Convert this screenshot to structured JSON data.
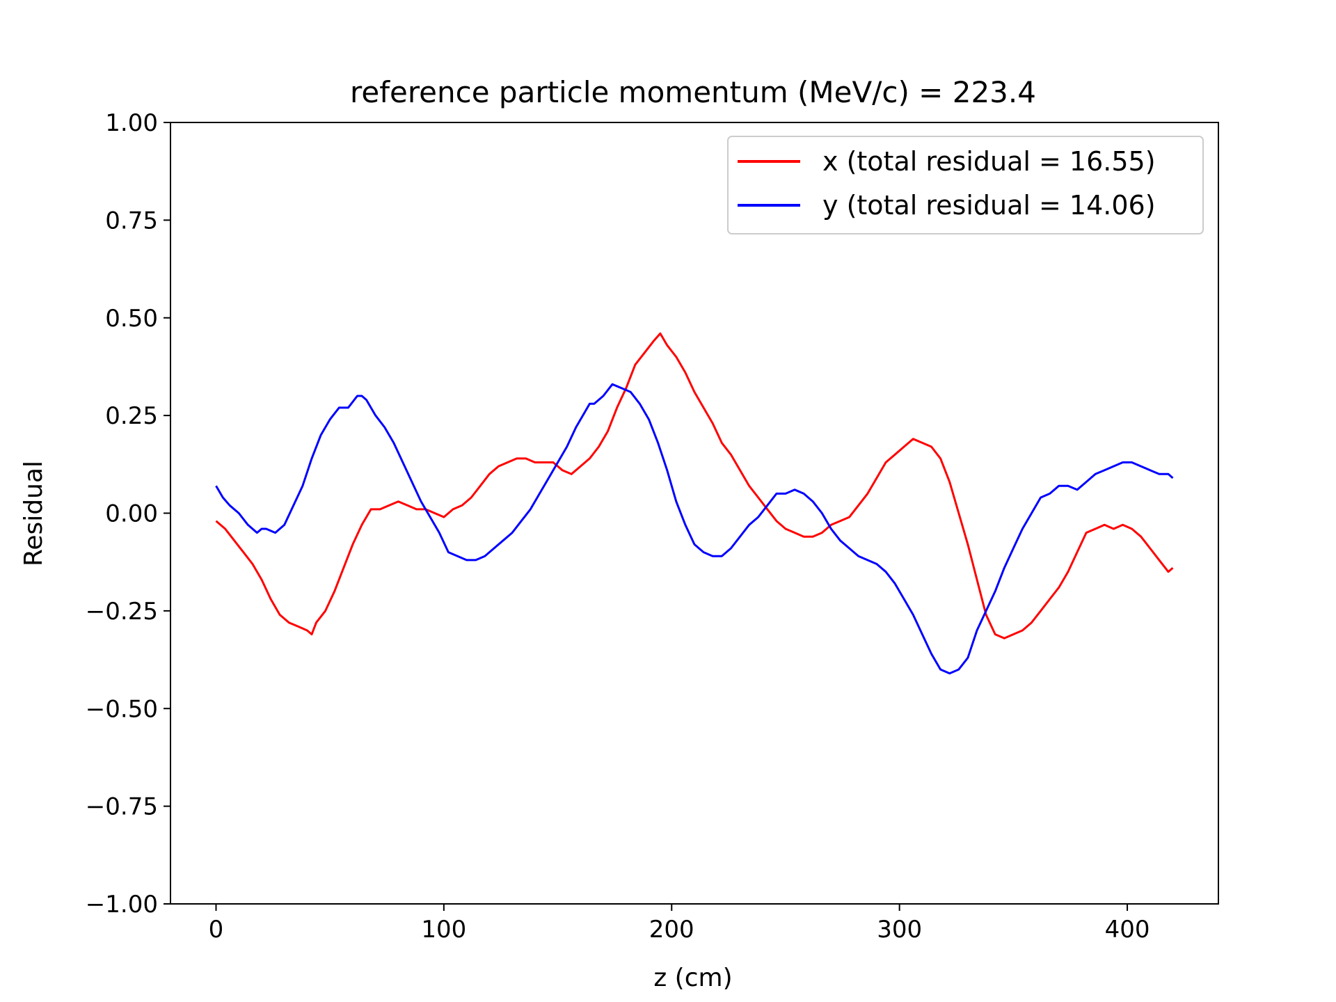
{
  "chart_data": {
    "type": "line",
    "title": "reference particle momentum (MeV/c) = 223.4",
    "xlabel": "z (cm)",
    "ylabel": "Residual",
    "xlim": [
      -20,
      440
    ],
    "ylim": [
      -1.0,
      1.0
    ],
    "xticks": [
      0,
      100,
      200,
      300,
      400
    ],
    "xtick_labels": [
      "0",
      "100",
      "200",
      "300",
      "400"
    ],
    "yticks": [
      -1.0,
      -0.75,
      -0.5,
      -0.25,
      0.0,
      0.25,
      0.5,
      0.75,
      1.0
    ],
    "ytick_labels": [
      "−1.00",
      "−0.75",
      "−0.50",
      "−0.25",
      "0.00",
      "0.25",
      "0.50",
      "0.75",
      "1.00"
    ],
    "grid": false,
    "legend_position": "top-right",
    "series": [
      {
        "name": "x (total residual = 16.55)",
        "color": "#ff0000",
        "x": [
          0,
          4,
          8,
          12,
          16,
          20,
          24,
          28,
          32,
          36,
          40,
          42,
          44,
          48,
          52,
          56,
          60,
          64,
          68,
          72,
          76,
          80,
          84,
          88,
          92,
          96,
          100,
          104,
          108,
          112,
          116,
          120,
          124,
          128,
          132,
          136,
          140,
          144,
          148,
          152,
          156,
          160,
          164,
          168,
          172,
          176,
          180,
          184,
          188,
          192,
          195,
          198,
          202,
          206,
          210,
          214,
          218,
          222,
          226,
          230,
          234,
          238,
          242,
          246,
          250,
          254,
          258,
          262,
          266,
          270,
          274,
          278,
          282,
          286,
          290,
          294,
          298,
          302,
          306,
          310,
          314,
          318,
          322,
          326,
          330,
          334,
          338,
          342,
          346,
          350,
          354,
          358,
          362,
          366,
          370,
          374,
          378,
          382,
          386,
          390,
          394,
          398,
          402,
          406,
          410,
          414,
          418,
          420
        ],
        "y": [
          -0.02,
          -0.04,
          -0.07,
          -0.1,
          -0.13,
          -0.17,
          -0.22,
          -0.26,
          -0.28,
          -0.29,
          -0.3,
          -0.31,
          -0.28,
          -0.25,
          -0.2,
          -0.14,
          -0.08,
          -0.03,
          0.01,
          0.01,
          0.02,
          0.03,
          0.02,
          0.01,
          0.01,
          0.0,
          -0.01,
          0.01,
          0.02,
          0.04,
          0.07,
          0.1,
          0.12,
          0.13,
          0.14,
          0.14,
          0.13,
          0.13,
          0.13,
          0.11,
          0.1,
          0.12,
          0.14,
          0.17,
          0.21,
          0.27,
          0.32,
          0.38,
          0.41,
          0.44,
          0.46,
          0.43,
          0.4,
          0.36,
          0.31,
          0.27,
          0.23,
          0.18,
          0.15,
          0.11,
          0.07,
          0.04,
          0.01,
          -0.02,
          -0.04,
          -0.05,
          -0.06,
          -0.06,
          -0.05,
          -0.03,
          -0.02,
          -0.01,
          0.02,
          0.05,
          0.09,
          0.13,
          0.15,
          0.17,
          0.19,
          0.18,
          0.17,
          0.14,
          0.08,
          0.0,
          -0.08,
          -0.17,
          -0.26,
          -0.31,
          -0.32,
          -0.31,
          -0.3,
          -0.28,
          -0.25,
          -0.22,
          -0.19,
          -0.15,
          -0.1,
          -0.05,
          -0.04,
          -0.03,
          -0.04,
          -0.03,
          -0.04,
          -0.06,
          -0.09,
          -0.12,
          -0.15,
          -0.14
        ]
      },
      {
        "name": "y (total residual = 14.06)",
        "color": "#0000ff",
        "x": [
          0,
          3,
          6,
          10,
          14,
          18,
          20,
          22,
          26,
          30,
          34,
          38,
          42,
          46,
          50,
          54,
          58,
          62,
          64,
          66,
          70,
          74,
          78,
          82,
          86,
          90,
          94,
          98,
          102,
          106,
          110,
          114,
          118,
          122,
          126,
          130,
          134,
          138,
          142,
          146,
          150,
          154,
          158,
          162,
          164,
          166,
          170,
          174,
          178,
          182,
          186,
          190,
          194,
          198,
          202,
          206,
          210,
          214,
          218,
          222,
          226,
          230,
          234,
          238,
          242,
          246,
          250,
          254,
          258,
          262,
          266,
          270,
          274,
          278,
          282,
          286,
          290,
          294,
          298,
          302,
          306,
          310,
          314,
          318,
          322,
          326,
          330,
          334,
          338,
          342,
          346,
          350,
          354,
          358,
          362,
          366,
          370,
          374,
          378,
          382,
          386,
          390,
          394,
          398,
          402,
          406,
          410,
          414,
          418,
          420
        ],
        "y": [
          0.07,
          0.04,
          0.02,
          0.0,
          -0.03,
          -0.05,
          -0.04,
          -0.04,
          -0.05,
          -0.03,
          0.02,
          0.07,
          0.14,
          0.2,
          0.24,
          0.27,
          0.27,
          0.3,
          0.3,
          0.29,
          0.25,
          0.22,
          0.18,
          0.13,
          0.08,
          0.03,
          -0.01,
          -0.05,
          -0.1,
          -0.11,
          -0.12,
          -0.12,
          -0.11,
          -0.09,
          -0.07,
          -0.05,
          -0.02,
          0.01,
          0.05,
          0.09,
          0.13,
          0.17,
          0.22,
          0.26,
          0.28,
          0.28,
          0.3,
          0.33,
          0.32,
          0.31,
          0.28,
          0.24,
          0.18,
          0.11,
          0.03,
          -0.03,
          -0.08,
          -0.1,
          -0.11,
          -0.11,
          -0.09,
          -0.06,
          -0.03,
          -0.01,
          0.02,
          0.05,
          0.05,
          0.06,
          0.05,
          0.03,
          0.0,
          -0.04,
          -0.07,
          -0.09,
          -0.11,
          -0.12,
          -0.13,
          -0.15,
          -0.18,
          -0.22,
          -0.26,
          -0.31,
          -0.36,
          -0.4,
          -0.41,
          -0.4,
          -0.37,
          -0.3,
          -0.25,
          -0.2,
          -0.14,
          -0.09,
          -0.04,
          0.0,
          0.04,
          0.05,
          0.07,
          0.07,
          0.06,
          0.08,
          0.1,
          0.11,
          0.12,
          0.13,
          0.13,
          0.12,
          0.11,
          0.1,
          0.1,
          0.09
        ]
      }
    ]
  }
}
